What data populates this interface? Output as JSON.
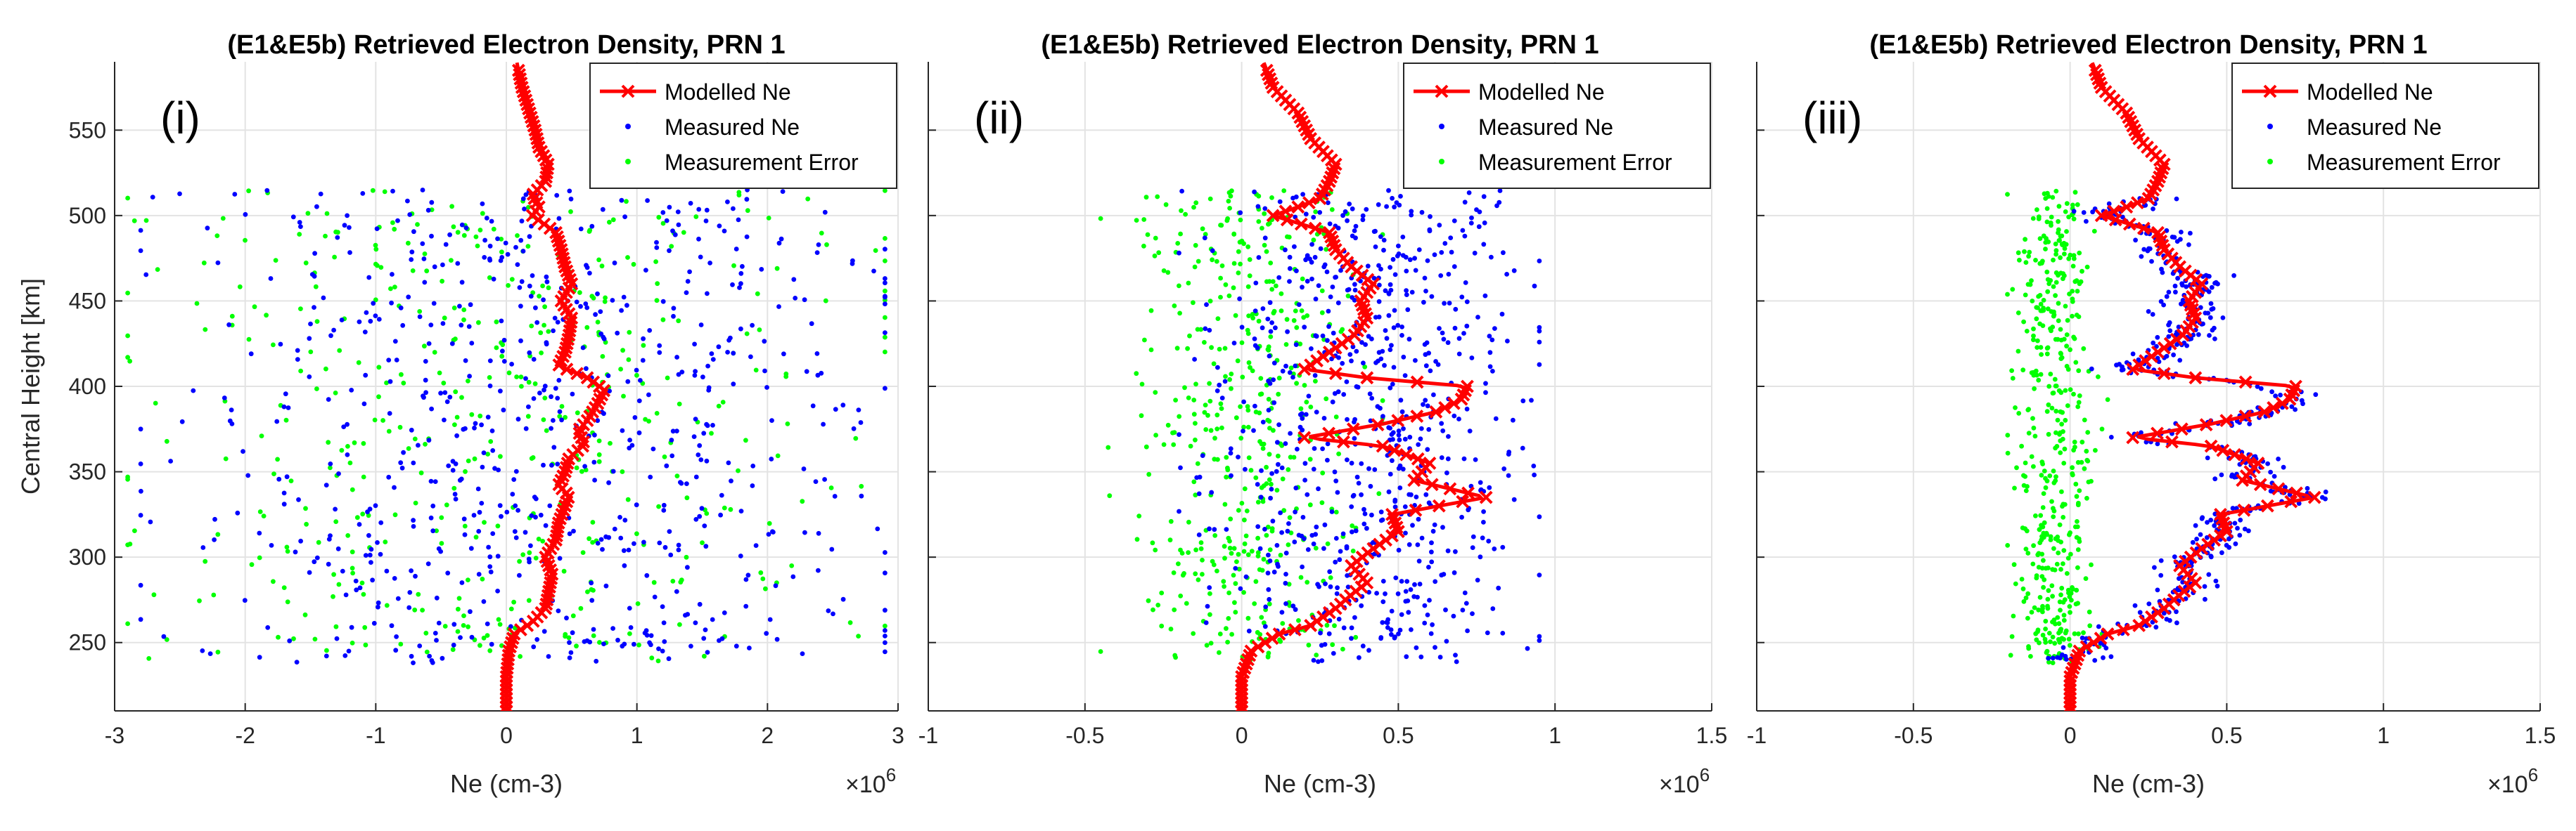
{
  "figure": {
    "shared_xlabel": "Ne (cm-3)",
    "shared_ylabel": "Central Height [km]",
    "x_multiplier": "×10",
    "x_multiplier_exp": "6",
    "legend": [
      "Modelled Ne",
      "Measured Ne",
      "Measurement Error"
    ],
    "colors": {
      "modelled": "#ff0000",
      "measured": "#0000ff",
      "error": "#00ff00"
    }
  },
  "chart_data": [
    {
      "type": "scatter",
      "title": "(E1&E5b) Retrieved Electron Density, PRN 1",
      "panel_label": "(i)",
      "xlabel": "Ne (cm-3)",
      "ylabel": "Central Height [km]",
      "xlim": [
        -3,
        3
      ],
      "ylim": [
        210,
        590
      ],
      "xticks": [
        -3,
        -2,
        -1,
        0,
        1,
        2,
        3
      ],
      "xtick_labels": [
        "-3",
        "-2",
        "-1",
        "0",
        "1",
        "2",
        "3"
      ],
      "yticks": [
        250,
        300,
        350,
        400,
        450,
        500,
        550
      ],
      "ytick_labels": [
        "250",
        "300",
        "350",
        "400",
        "450",
        "500",
        "550"
      ],
      "grid": true,
      "legend_location": "top-right",
      "series": [
        {
          "name": "Modelled Ne",
          "style": "line-x",
          "height": [
            210,
            230,
            245,
            255,
            262,
            270,
            278,
            290,
            300,
            310,
            320,
            330,
            336,
            342,
            350,
            358,
            366,
            374,
            380,
            390,
            398,
            405,
            412,
            420,
            430,
            440,
            450,
            460,
            470,
            480,
            490,
            500,
            505,
            512,
            520,
            530,
            540,
            550,
            560,
            575,
            590
          ],
          "ne": [
            0.0,
            0.0,
            0.02,
            0.06,
            0.2,
            0.3,
            0.32,
            0.35,
            0.3,
            0.38,
            0.4,
            0.45,
            0.48,
            0.4,
            0.45,
            0.48,
            0.6,
            0.55,
            0.62,
            0.7,
            0.75,
            0.62,
            0.4,
            0.45,
            0.48,
            0.5,
            0.42,
            0.5,
            0.45,
            0.42,
            0.38,
            0.2,
            0.25,
            0.2,
            0.3,
            0.32,
            0.25,
            0.22,
            0.18,
            0.12,
            0.08
          ]
        },
        {
          "name": "Measured Ne",
          "style": "dots",
          "seed": 11,
          "n": 700,
          "x_range": [
            -2.8,
            2.9
          ],
          "y_range": [
            238,
            515
          ],
          "x_center": 0.3,
          "x_spread": 1.4
        },
        {
          "name": "Measurement Error",
          "style": "dots",
          "seed": 23,
          "n": 450,
          "x_range": [
            -2.9,
            2.9
          ],
          "y_range": [
            238,
            515
          ],
          "x_center": 0.0,
          "x_spread": 1.3
        }
      ]
    },
    {
      "type": "scatter",
      "title": "(E1&E5b) Retrieved Electron Density, PRN 1",
      "panel_label": "(ii)",
      "xlabel": "Ne (cm-3)",
      "ylabel": "",
      "xlim": [
        -1,
        1.5
      ],
      "ylim": [
        210,
        590
      ],
      "xticks": [
        -1,
        -0.5,
        0,
        0.5,
        1,
        1.5
      ],
      "xtick_labels": [
        "-1",
        "-0.5",
        "0",
        "0.5",
        "1",
        "1.5"
      ],
      "yticks": [
        250,
        300,
        350,
        400,
        450,
        500,
        550
      ],
      "ytick_labels": [],
      "grid": true,
      "legend_location": "top-right",
      "series": [
        {
          "name": "Modelled Ne",
          "style": "line-x",
          "height": [
            210,
            230,
            245,
            255,
            260,
            270,
            278,
            285,
            295,
            305,
            315,
            325,
            335,
            345,
            355,
            365,
            370,
            378,
            385,
            392,
            400,
            405,
            410,
            420,
            430,
            440,
            450,
            460,
            470,
            480,
            490,
            500,
            505,
            510,
            520,
            530,
            545,
            560,
            575,
            590
          ],
          "ne": [
            0.0,
            0.0,
            0.03,
            0.12,
            0.22,
            0.3,
            0.35,
            0.4,
            0.35,
            0.42,
            0.5,
            0.48,
            0.78,
            0.55,
            0.6,
            0.45,
            0.2,
            0.45,
            0.62,
            0.7,
            0.72,
            0.4,
            0.2,
            0.28,
            0.36,
            0.4,
            0.38,
            0.42,
            0.35,
            0.3,
            0.28,
            0.1,
            0.18,
            0.25,
            0.28,
            0.3,
            0.22,
            0.18,
            0.1,
            0.07
          ]
        },
        {
          "name": "Measured Ne",
          "style": "dots",
          "seed": 37,
          "n": 700,
          "x_range": [
            -0.2,
            0.95
          ],
          "y_range": [
            238,
            515
          ],
          "x_center": 0.4,
          "x_spread": 0.25
        },
        {
          "name": "Measurement Error",
          "style": "dots",
          "seed": 41,
          "n": 450,
          "x_range": [
            -0.45,
            0.45
          ],
          "y_range": [
            238,
            515
          ],
          "x_center": 0.0,
          "x_spread": 0.18
        }
      ]
    },
    {
      "type": "scatter",
      "title": "(E1&E5b) Retrieved Electron Density, PRN 1",
      "panel_label": "(iii)",
      "xlabel": "Ne (cm-3)",
      "ylabel": "",
      "xlim": [
        -1,
        1.5
      ],
      "ylim": [
        210,
        590
      ],
      "xticks": [
        -1,
        -0.5,
        0,
        0.5,
        1,
        1.5
      ],
      "xtick_labels": [
        "-1",
        "-0.5",
        "0",
        "0.5",
        "1",
        "1.5"
      ],
      "yticks": [
        250,
        300,
        350,
        400,
        450,
        500,
        550
      ],
      "ytick_labels": [],
      "grid": true,
      "legend_location": "top-right",
      "series": [
        {
          "name": "Modelled Ne",
          "style": "line-x",
          "height": [
            210,
            230,
            245,
            255,
            260,
            270,
            278,
            285,
            295,
            305,
            315,
            325,
            335,
            345,
            355,
            365,
            370,
            378,
            385,
            392,
            400,
            405,
            410,
            420,
            430,
            440,
            450,
            460,
            470,
            480,
            490,
            500,
            505,
            510,
            520,
            530,
            545,
            560,
            575,
            590
          ],
          "ne": [
            0.0,
            0.0,
            0.03,
            0.12,
            0.22,
            0.3,
            0.35,
            0.4,
            0.35,
            0.42,
            0.5,
            0.48,
            0.78,
            0.55,
            0.6,
            0.45,
            0.2,
            0.45,
            0.62,
            0.7,
            0.72,
            0.4,
            0.2,
            0.28,
            0.36,
            0.4,
            0.38,
            0.42,
            0.35,
            0.3,
            0.28,
            0.1,
            0.18,
            0.25,
            0.28,
            0.3,
            0.22,
            0.18,
            0.1,
            0.07
          ]
        },
        {
          "name": "Measured Ne",
          "style": "dots-follow",
          "seed": 53,
          "n": 500,
          "jitter": 0.05,
          "y_range": [
            238,
            510
          ]
        },
        {
          "name": "Measurement Error",
          "style": "dots",
          "seed": 59,
          "n": 450,
          "x_range": [
            -0.2,
            0.12
          ],
          "y_range": [
            238,
            515
          ],
          "x_center": -0.05,
          "x_spread": 0.06
        }
      ]
    }
  ]
}
